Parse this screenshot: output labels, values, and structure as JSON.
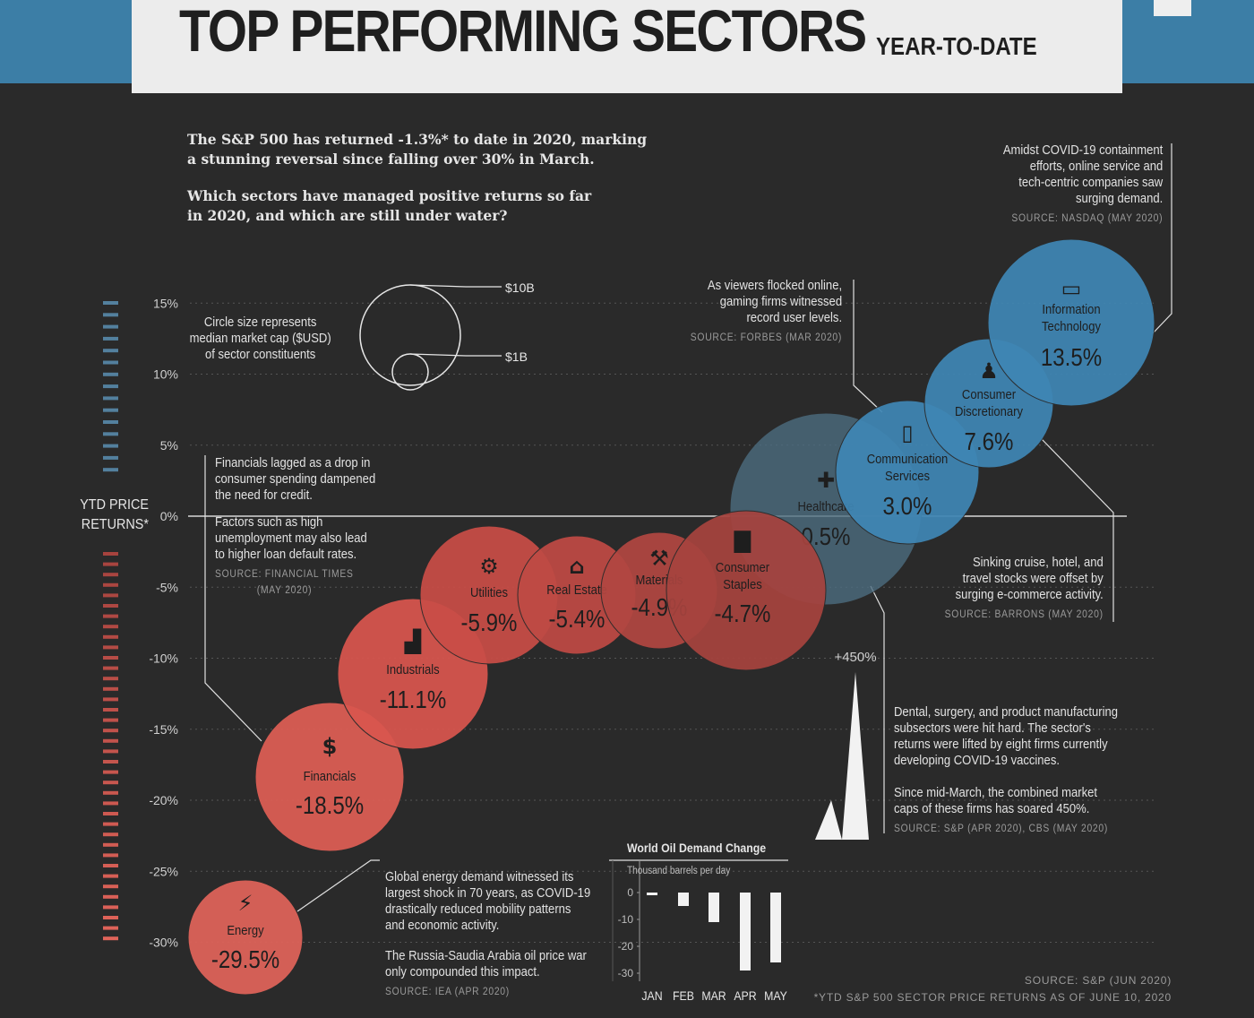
{
  "header": {
    "title": "TOP PERFORMING SECTORS",
    "subtitle": "YEAR-TO-DATE"
  },
  "intro": {
    "line1": "The S&P 500 has returned -1.3%* to date in 2020, marking",
    "line2": "a stunning reversal since falling over 30% in March.",
    "line3": "Which sectors have managed positive returns so far",
    "line4": "in 2020, and which are still under water?"
  },
  "legend": {
    "text1": "Circle size represents",
    "text2": "median market cap ($USD)",
    "text3": "of sector constituents",
    "big_label": "$10B",
    "small_label": "$1B"
  },
  "axis_title": {
    "line1": "YTD PRICE",
    "line2": "RETURNS*"
  },
  "colors": {
    "background": "#2a2a2a",
    "header_band": "#3c7ea6",
    "positive": "#3f86b4",
    "negative_light": "#e0645a",
    "negative_dark": "#a6433e",
    "healthcare": "#4d6e82"
  },
  "chart_data": [
    {
      "type": "scatter",
      "ylabel": "YTD PRICE RETURNS*",
      "ylim": [
        -30,
        15
      ],
      "y_ticks": [
        "15%",
        "10%",
        "5%",
        "0%",
        "-5%",
        "-10%",
        "-15%",
        "-20%",
        "-25%",
        "-30%"
      ],
      "points": [
        {
          "sector": "Energy",
          "value": -29.5,
          "label": "-29.5%",
          "icon": "lightning-icon"
        },
        {
          "sector": "Financials",
          "value": -18.5,
          "label": "-18.5%",
          "icon": "money-bag-icon"
        },
        {
          "sector": "Industrials",
          "value": -11.1,
          "label": "-11.1%",
          "icon": "factory-icon"
        },
        {
          "sector": "Utilities",
          "value": -5.9,
          "label": "-5.9%",
          "icon": "gear-icon"
        },
        {
          "sector": "Real Estate",
          "value": -5.4,
          "label": "-5.4%",
          "icon": "house-icon"
        },
        {
          "sector": "Materials",
          "value": -4.9,
          "label": "-4.9%",
          "icon": "tools-icon"
        },
        {
          "sector": "Consumer Staples",
          "value": -4.7,
          "label": "-4.7%",
          "icon": "shopping-bag-icon"
        },
        {
          "sector": "Healthcare",
          "value": 0.5,
          "label": "0.5%",
          "icon": "medical-cross-icon"
        },
        {
          "sector": "Communication Services",
          "value": 3.0,
          "label": "3.0%",
          "icon": "phone-icon"
        },
        {
          "sector": "Consumer Discretionary",
          "value": 7.6,
          "label": "7.6%",
          "icon": "shopping-person-icon"
        },
        {
          "sector": "Information Technology",
          "value": 13.5,
          "label": "13.5%",
          "icon": "monitor-icon"
        }
      ]
    },
    {
      "type": "bar",
      "title": "World Oil Demand Change",
      "ylabel": "Thousand barrels per day",
      "categories": [
        "JAN",
        "FEB",
        "MAR",
        "APR",
        "MAY"
      ],
      "values": [
        -1,
        -5,
        -11,
        -29,
        -26
      ],
      "ylim": [
        -30,
        0
      ],
      "y_ticks": [
        "0",
        "-10",
        "-20",
        "-30"
      ]
    }
  ],
  "annotations": {
    "it": {
      "lines": [
        "Amidst COVID-19 containment",
        "efforts, online service and",
        "tech-centric companies saw",
        "surging demand."
      ],
      "source": "SOURCE: NASDAQ (MAY 2020)"
    },
    "gaming": {
      "lines": [
        "As viewers flocked online,",
        "gaming firms witnessed",
        "record user levels."
      ],
      "source": "SOURCE: FORBES (MAR 2020)"
    },
    "financials": {
      "lines": [
        "Financials lagged as a drop in",
        "consumer spending dampened",
        "the need for credit.",
        "",
        "Factors such as high",
        "unemployment may also lead",
        "to higher loan default rates."
      ],
      "source1": "SOURCE: FINANCIAL TIMES",
      "source2": "(MAY 2020)"
    },
    "cruise": {
      "lines": [
        "Sinking cruise, hotel, and",
        "travel stocks were offset by",
        "surging e-commerce activity."
      ],
      "source": "SOURCE: BARRONS (MAY 2020)"
    },
    "healthcare": {
      "spike_label": "+450%",
      "lines": [
        "Dental, surgery, and product manufacturing",
        "subsectors were hit hard. The sector's",
        "returns were lifted by eight firms currently",
        "developing COVID-19 vaccines.",
        "",
        "Since mid-March, the combined market",
        "caps of these firms has soared 450%."
      ],
      "source": "SOURCE: S&P (APR 2020), CBS (MAY 2020)"
    },
    "energy": {
      "lines": [
        "Global energy demand witnessed its",
        "largest shock in 70 years, as COVID-19",
        "drastically reduced mobility patterns",
        "and economic activity.",
        "",
        "The Russia-Saudia Arabia oil price war",
        "only compounded this impact."
      ],
      "source": "SOURCE: IEA (APR 2020)"
    }
  },
  "footer": {
    "source": "SOURCE: S&P  (JUN 2020)",
    "note": "*YTD S&P 500 SECTOR PRICE RETURNS AS OF JUNE 10, 2020"
  }
}
